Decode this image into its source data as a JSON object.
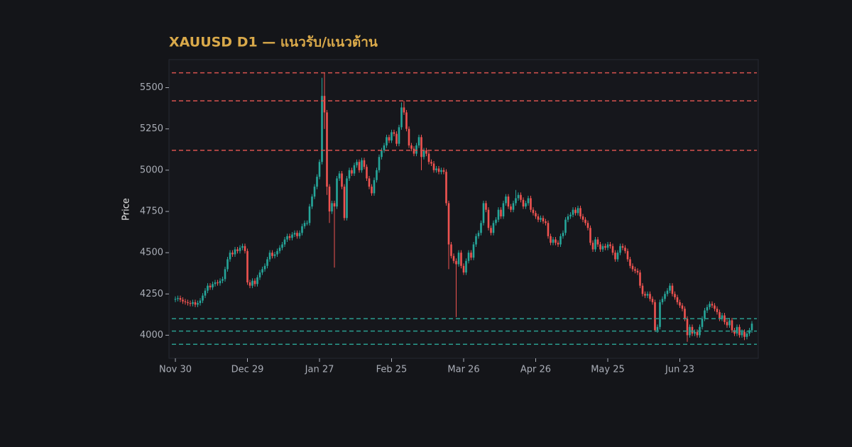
{
  "chart_data": {
    "type": "candlestick",
    "title": "XAUUSD D1 — แนวรับ/แนวต้าน",
    "ylabel": "Price",
    "up_color": "#26a69a",
    "down_color": "#ef5350",
    "ylim": [
      3860,
      5670
    ],
    "yticks": [
      4000,
      4250,
      4500,
      4750,
      5000,
      5250,
      5500
    ],
    "levels": {
      "resistance": [
        5590,
        5420,
        5120
      ],
      "support": [
        4100,
        4025,
        3945
      ],
      "resistance_color": "#d9534f",
      "support_color": "#2a9d8f"
    },
    "categories": [
      "Nov 30",
      null,
      null,
      null,
      null,
      null,
      null,
      null,
      null,
      null,
      null,
      null,
      null,
      null,
      null,
      null,
      null,
      null,
      null,
      null,
      null,
      null,
      null,
      null,
      null,
      null,
      null,
      null,
      null,
      "Dec 29",
      null,
      null,
      null,
      null,
      null,
      null,
      null,
      null,
      null,
      null,
      null,
      null,
      null,
      null,
      null,
      null,
      null,
      null,
      null,
      null,
      null,
      null,
      null,
      null,
      null,
      null,
      null,
      null,
      "Jan 27",
      null,
      null,
      null,
      null,
      null,
      null,
      null,
      null,
      null,
      null,
      null,
      null,
      null,
      null,
      null,
      null,
      null,
      null,
      null,
      null,
      null,
      null,
      null,
      null,
      null,
      null,
      null,
      null,
      "Feb 25",
      null,
      null,
      null,
      null,
      null,
      null,
      null,
      null,
      null,
      null,
      null,
      null,
      null,
      null,
      null,
      null,
      null,
      null,
      null,
      null,
      null,
      null,
      null,
      null,
      null,
      null,
      null,
      null,
      "Mar 26",
      null,
      null,
      null,
      null,
      null,
      null,
      null,
      null,
      null,
      null,
      null,
      null,
      null,
      null,
      null,
      null,
      null,
      null,
      null,
      null,
      null,
      null,
      null,
      null,
      null,
      null,
      null,
      null,
      "Apr 26",
      null,
      null,
      null,
      null,
      null,
      null,
      null,
      null,
      null,
      null,
      null,
      null,
      null,
      null,
      null,
      null,
      null,
      null,
      null,
      null,
      null,
      null,
      null,
      null,
      null,
      null,
      null,
      null,
      "May 25",
      null,
      null,
      null,
      null,
      null,
      null,
      null,
      null,
      null,
      null,
      null,
      null,
      null,
      null,
      null,
      null,
      null,
      null,
      null,
      null,
      null,
      null,
      null,
      null,
      null,
      null,
      null,
      null,
      "Jun 23",
      null,
      null,
      null,
      null,
      null,
      null,
      null,
      null,
      null,
      null,
      null,
      null,
      null,
      null,
      null,
      null,
      null,
      null,
      null,
      null,
      null,
      null,
      null,
      null,
      null,
      null,
      null,
      null,
      null
    ],
    "open": [
      4215,
      4220,
      4225,
      4215,
      4205,
      4200,
      4195,
      4190,
      4200,
      4185,
      4195,
      4210,
      4240,
      4270,
      4300,
      4290,
      4310,
      4320,
      4315,
      4330,
      4340,
      4400,
      4460,
      4500,
      4490,
      4520,
      4510,
      4530,
      4540,
      4510,
      4320,
      4300,
      4330,
      4310,
      4350,
      4380,
      4400,
      4420,
      4460,
      4500,
      4480,
      4490,
      4510,
      4530,
      4550,
      4580,
      4600,
      4590,
      4610,
      4620,
      4600,
      4620,
      4660,
      4680,
      4680,
      4780,
      4840,
      4900,
      4960,
      5050,
      5450,
      5350,
      4900,
      4750,
      4800,
      4780,
      4950,
      4980,
      4900,
      4710,
      4950,
      5000,
      4980,
      5030,
      5050,
      5000,
      5060,
      5020,
      4950,
      4900,
      4860,
      4940,
      5000,
      5080,
      5120,
      5150,
      5200,
      5180,
      5230,
      5220,
      5160,
      5260,
      5380,
      5350,
      5250,
      5150,
      5130,
      5100,
      5150,
      5200,
      5080,
      5120,
      5100,
      5050,
      5040,
      5000,
      5010,
      4990,
      5000,
      4990,
      4800,
      4550,
      4480,
      4450,
      4430,
      4500,
      4420,
      4380,
      4450,
      4500,
      4470,
      4550,
      4600,
      4620,
      4680,
      4800,
      4760,
      4650,
      4620,
      4680,
      4700,
      4760,
      4720,
      4800,
      4840,
      4780,
      4760,
      4800,
      4830,
      4850,
      4820,
      4780,
      4800,
      4830,
      4760,
      4740,
      4720,
      4700,
      4710,
      4690,
      4680,
      4600,
      4560,
      4580,
      4560,
      4550,
      4600,
      4620,
      4700,
      4720,
      4730,
      4760,
      4740,
      4770,
      4720,
      4700,
      4680,
      4650,
      4560,
      4520,
      4580,
      4550,
      4520,
      4540,
      4530,
      4550,
      4540,
      4500,
      4460,
      4500,
      4540,
      4530,
      4510,
      4460,
      4420,
      4400,
      4390,
      4380,
      4300,
      4250,
      4240,
      4250,
      4220,
      4200,
      4030,
      4050,
      4200,
      4220,
      4250,
      4270,
      4300,
      4250,
      4230,
      4200,
      4180,
      4160,
      4100,
      4000,
      4050,
      4010,
      4020,
      4000,
      4050,
      4100,
      4150,
      4170,
      4190,
      4180,
      4160,
      4140,
      4100,
      4120,
      4080,
      4060,
      4090,
      4030,
      4010,
      4050,
      4000,
      4020,
      3990,
      4010,
      4030
    ],
    "high": [
      4235,
      4240,
      4240,
      4230,
      4220,
      4215,
      4210,
      4215,
      4215,
      4210,
      4225,
      4255,
      4285,
      4315,
      4315,
      4325,
      4335,
      4335,
      4345,
      4355,
      4415,
      4475,
      4515,
      4515,
      4535,
      4535,
      4545,
      4555,
      4555,
      4525,
      4335,
      4345,
      4345,
      4365,
      4395,
      4415,
      4435,
      4475,
      4515,
      4515,
      4505,
      4525,
      4545,
      4565,
      4595,
      4615,
      4615,
      4625,
      4635,
      4635,
      4635,
      4675,
      4695,
      4695,
      4795,
      4855,
      4915,
      4975,
      5065,
      5560,
      5590,
      5365,
      4915,
      4815,
      4815,
      4965,
      4995,
      4995,
      4915,
      4965,
      5015,
      5015,
      5045,
      5065,
      5065,
      5075,
      5075,
      5035,
      4965,
      4915,
      4955,
      5015,
      5095,
      5135,
      5165,
      5215,
      5215,
      5245,
      5245,
      5235,
      5275,
      5410,
      5420,
      5365,
      5265,
      5165,
      5145,
      5165,
      5215,
      5215,
      5135,
      5135,
      5115,
      5065,
      5055,
      5025,
      5025,
      5015,
      5015,
      5005,
      4815,
      4565,
      4495,
      4465,
      4515,
      4515,
      4435,
      4465,
      4515,
      4515,
      4565,
      4615,
      4635,
      4695,
      4815,
      4815,
      4775,
      4665,
      4695,
      4715,
      4775,
      4775,
      4815,
      4855,
      4855,
      4795,
      4815,
      4880,
      4865,
      4865,
      4835,
      4815,
      4845,
      4845,
      4775,
      4755,
      4735,
      4725,
      4725,
      4705,
      4695,
      4615,
      4595,
      4595,
      4575,
      4615,
      4635,
      4715,
      4735,
      4745,
      4775,
      4775,
      4785,
      4785,
      4735,
      4715,
      4695,
      4665,
      4575,
      4595,
      4595,
      4565,
      4555,
      4555,
      4565,
      4565,
      4555,
      4515,
      4515,
      4555,
      4555,
      4545,
      4525,
      4475,
      4435,
      4415,
      4405,
      4395,
      4315,
      4265,
      4265,
      4265,
      4235,
      4215,
      4065,
      4215,
      4235,
      4265,
      4285,
      4315,
      4315,
      4265,
      4245,
      4215,
      4195,
      4175,
      4115,
      4065,
      4065,
      4035,
      4035,
      4065,
      4115,
      4165,
      4185,
      4205,
      4205,
      4195,
      4175,
      4155,
      4135,
      4135,
      4095,
      4105,
      4105,
      4045,
      4065,
      4065,
      4035,
      4035,
      4025,
      4045,
      4085
    ],
    "low": [
      4200,
      4205,
      4200,
      4190,
      4185,
      4180,
      4175,
      4175,
      4170,
      4170,
      4180,
      4195,
      4225,
      4255,
      4275,
      4275,
      4295,
      4300,
      4300,
      4315,
      4325,
      4385,
      4445,
      4475,
      4475,
      4495,
      4495,
      4515,
      4495,
      4305,
      4285,
      4285,
      4295,
      4295,
      4335,
      4365,
      4385,
      4405,
      4445,
      4465,
      4465,
      4475,
      4495,
      4515,
      4535,
      4565,
      4575,
      4575,
      4595,
      4585,
      4585,
      4605,
      4645,
      4665,
      4665,
      4765,
      4825,
      4885,
      4945,
      5035,
      5250,
      4850,
      4680,
      4735,
      4410,
      4765,
      4935,
      4885,
      4695,
      4695,
      4935,
      4965,
      4965,
      5015,
      4985,
      4985,
      5005,
      4935,
      4885,
      4845,
      4845,
      4925,
      4985,
      5065,
      5105,
      5135,
      5165,
      5165,
      5205,
      5145,
      5145,
      5245,
      5335,
      5235,
      5135,
      5115,
      5085,
      5085,
      5135,
      5000,
      5065,
      5085,
      5035,
      5025,
      4985,
      4985,
      4975,
      4975,
      4975,
      4785,
      4400,
      4465,
      4435,
      4110,
      4415,
      4405,
      4365,
      4365,
      4435,
      4455,
      4455,
      4535,
      4585,
      4605,
      4665,
      4745,
      4635,
      4605,
      4605,
      4665,
      4685,
      4705,
      4705,
      4785,
      4765,
      4745,
      4745,
      4785,
      4815,
      4805,
      4765,
      4765,
      4785,
      4745,
      4725,
      4705,
      4685,
      4685,
      4675,
      4665,
      4585,
      4545,
      4545,
      4545,
      4535,
      4535,
      4585,
      4605,
      4685,
      4705,
      4715,
      4725,
      4725,
      4705,
      4685,
      4665,
      4635,
      4545,
      4505,
      4505,
      4535,
      4505,
      4505,
      4515,
      4515,
      4525,
      4485,
      4445,
      4445,
      4485,
      4515,
      4495,
      4445,
      4405,
      4385,
      4375,
      4365,
      4285,
      4235,
      4225,
      4225,
      4205,
      4185,
      4020,
      4015,
      4035,
      4185,
      4205,
      4235,
      4255,
      4235,
      4215,
      4185,
      4165,
      4145,
      4085,
      3960,
      3985,
      3995,
      3995,
      3985,
      3985,
      4035,
      4085,
      4135,
      4155,
      4165,
      4145,
      4125,
      4085,
      4085,
      4065,
      4045,
      4045,
      4015,
      3995,
      3995,
      3985,
      3985,
      3970,
      3975,
      3995,
      4015
    ],
    "close": [
      4220,
      4225,
      4215,
      4205,
      4200,
      4195,
      4190,
      4200,
      4185,
      4195,
      4210,
      4240,
      4270,
      4300,
      4290,
      4310,
      4320,
      4315,
      4330,
      4340,
      4400,
      4460,
      4500,
      4490,
      4520,
      4510,
      4530,
      4540,
      4510,
      4320,
      4300,
      4330,
      4310,
      4350,
      4380,
      4400,
      4420,
      4460,
      4500,
      4480,
      4490,
      4510,
      4530,
      4550,
      4580,
      4600,
      4590,
      4610,
      4620,
      4600,
      4620,
      4660,
      4680,
      4680,
      4780,
      4840,
      4900,
      4960,
      5050,
      5450,
      5350,
      4900,
      4750,
      4800,
      4780,
      4950,
      4980,
      4900,
      4710,
      4950,
      5000,
      4980,
      5030,
      5050,
      5000,
      5060,
      5020,
      4950,
      4900,
      4860,
      4940,
      5000,
      5080,
      5120,
      5150,
      5200,
      5180,
      5230,
      5220,
      5160,
      5260,
      5380,
      5350,
      5250,
      5150,
      5130,
      5100,
      5150,
      5200,
      5080,
      5120,
      5100,
      5050,
      5040,
      5000,
      5010,
      4990,
      5000,
      4990,
      4800,
      4550,
      4480,
      4450,
      4430,
      4500,
      4420,
      4380,
      4450,
      4500,
      4470,
      4550,
      4600,
      4620,
      4680,
      4800,
      4760,
      4650,
      4620,
      4680,
      4700,
      4760,
      4720,
      4800,
      4840,
      4780,
      4760,
      4800,
      4830,
      4850,
      4820,
      4780,
      4800,
      4830,
      4760,
      4740,
      4720,
      4700,
      4710,
      4690,
      4680,
      4600,
      4560,
      4580,
      4560,
      4550,
      4600,
      4620,
      4700,
      4720,
      4730,
      4760,
      4740,
      4770,
      4720,
      4700,
      4680,
      4650,
      4560,
      4520,
      4580,
      4550,
      4520,
      4540,
      4530,
      4550,
      4540,
      4500,
      4460,
      4500,
      4540,
      4530,
      4510,
      4460,
      4420,
      4400,
      4390,
      4380,
      4300,
      4250,
      4240,
      4250,
      4220,
      4200,
      4030,
      4050,
      4200,
      4220,
      4250,
      4270,
      4300,
      4250,
      4230,
      4200,
      4180,
      4160,
      4100,
      4000,
      4050,
      4010,
      4020,
      4000,
      4050,
      4100,
      4150,
      4170,
      4190,
      4180,
      4160,
      4140,
      4100,
      4120,
      4080,
      4060,
      4090,
      4030,
      4010,
      4050,
      4000,
      4020,
      3990,
      4010,
      4030,
      4070
    ]
  }
}
